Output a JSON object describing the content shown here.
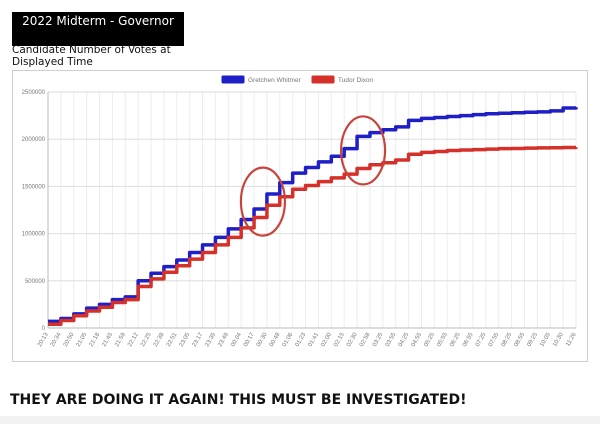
{
  "header": {
    "title": "2022 Midterm - Governor",
    "subtitle": "Candidate Number of Votes at Displayed Time"
  },
  "caption": "THEY ARE DOING IT AGAIN!  THIS MUST BE INVESTIGATED!",
  "chart_data": {
    "type": "line",
    "title": "",
    "xlabel": "",
    "ylabel": "",
    "ylim": [
      0,
      2500000
    ],
    "yticks": [
      0,
      500000,
      1000000,
      1500000,
      2000000,
      2500000
    ],
    "grid": true,
    "legend_position": "top-center",
    "categories": [
      "20:13",
      "20:34",
      "20:50",
      "21:05",
      "21:18",
      "21:45",
      "21:59",
      "22:12",
      "22:25",
      "22:38",
      "22:51",
      "23:05",
      "23:17",
      "23:35",
      "23:49",
      "00:04",
      "00:17",
      "00:30",
      "00:48",
      "01:06",
      "01:23",
      "01:41",
      "02:00",
      "02:15",
      "02:30",
      "02:58",
      "03:25",
      "03:55",
      "04:25",
      "04:55",
      "05:25",
      "05:55",
      "06:25",
      "06:55",
      "07:25",
      "07:55",
      "08:25",
      "08:55",
      "09:25",
      "10:05",
      "10:30",
      "11:26"
    ],
    "series": [
      {
        "name": "Gretchen Whitmer",
        "color": "#1f1fc8",
        "values": [
          70000,
          100000,
          150000,
          210000,
          250000,
          300000,
          330000,
          500000,
          580000,
          650000,
          720000,
          800000,
          880000,
          960000,
          1050000,
          1150000,
          1260000,
          1420000,
          1540000,
          1640000,
          1700000,
          1760000,
          1820000,
          1900000,
          2030000,
          2070000,
          2100000,
          2130000,
          2200000,
          2220000,
          2230000,
          2240000,
          2250000,
          2260000,
          2270000,
          2275000,
          2280000,
          2285000,
          2290000,
          2300000,
          2330000,
          2340000
        ]
      },
      {
        "name": "Tudor Dixon",
        "color": "#d6302a",
        "values": [
          40000,
          80000,
          130000,
          180000,
          220000,
          270000,
          300000,
          440000,
          520000,
          590000,
          660000,
          730000,
          800000,
          880000,
          960000,
          1060000,
          1170000,
          1300000,
          1390000,
          1470000,
          1510000,
          1550000,
          1590000,
          1630000,
          1690000,
          1730000,
          1750000,
          1780000,
          1840000,
          1860000,
          1870000,
          1880000,
          1885000,
          1890000,
          1895000,
          1900000,
          1902000,
          1905000,
          1908000,
          1910000,
          1912000,
          1915000
        ]
      }
    ],
    "annotations": [
      {
        "shape": "ellipse",
        "color": "#c8443c",
        "around_x": "00:30"
      },
      {
        "shape": "ellipse",
        "color": "#c8443c",
        "around_x": "02:30"
      }
    ]
  }
}
